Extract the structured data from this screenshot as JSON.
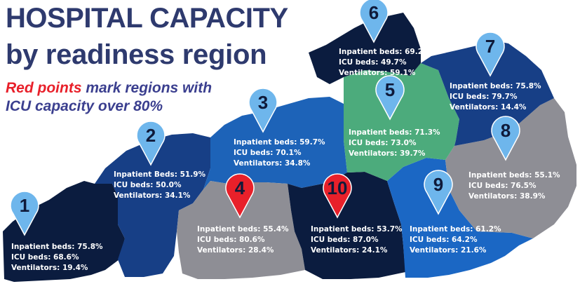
{
  "title": {
    "line1": "HOSPITAL CAPACITY",
    "line2": "by readiness region"
  },
  "subtitle": {
    "highlight": "Red points",
    "line1_rest": " mark regions with",
    "line2": "ICU capacity over 80%"
  },
  "colors": {
    "title": "#2e3a6e",
    "subtitle": "#3b3f8f",
    "highlight": "#e8202a",
    "pin_blue": "#6eb6ec",
    "pin_red": "#e8202a"
  },
  "regions": [
    {
      "number": "1",
      "pin": "blue",
      "inpatient": "Inpatient beds: 75.8%",
      "icu": "ICU beds: 68.6%",
      "ventilators": "Ventilators: 19.4%"
    },
    {
      "number": "2",
      "pin": "blue",
      "inpatient": "Inpatient Beds: 51.9%",
      "icu": "ICU beds: 50.0%",
      "ventilators": "Ventilators: 34.1%"
    },
    {
      "number": "3",
      "pin": "blue",
      "inpatient": "Inpatient beds: 59.7%",
      "icu": "ICU beds: 70.1%",
      "ventilators": "Ventilators: 34.8%"
    },
    {
      "number": "4",
      "pin": "red",
      "inpatient": "Inpatient beds: 55.4%",
      "icu": "ICU beds: 80.6%",
      "ventilators": "Ventilators: 28.4%"
    },
    {
      "number": "5",
      "pin": "blue",
      "inpatient": "Inpatient beds: 71.3%",
      "icu": "ICU beds: 73.0%",
      "ventilators": "Ventilators: 39.7%"
    },
    {
      "number": "6",
      "pin": "blue",
      "inpatient": "Inpatient beds: 69.2%",
      "icu": "ICU beds: 49.7%",
      "ventilators": "Ventilators: 59.1%"
    },
    {
      "number": "7",
      "pin": "blue",
      "inpatient": "Inpatient beds: 75.8%",
      "icu": "ICU beds: 79.7%",
      "ventilators": "Ventilators: 14.4%"
    },
    {
      "number": "8",
      "pin": "blue",
      "inpatient": "Inpatient beds: 55.1%",
      "icu": "ICU beds: 76.5%",
      "ventilators": "Ventilators: 38.9%"
    },
    {
      "number": "9",
      "pin": "blue",
      "inpatient": "Inpatient beds: 61.2%",
      "icu": "ICU beds: 64.2%",
      "ventilators": "Ventilators: 21.6%"
    },
    {
      "number": "10",
      "pin": "red",
      "inpatient": "Inpatient beds: 53.7%",
      "icu": "ICU beds: 87.0%",
      "ventilators": "Ventilators: 24.1%"
    }
  ]
}
